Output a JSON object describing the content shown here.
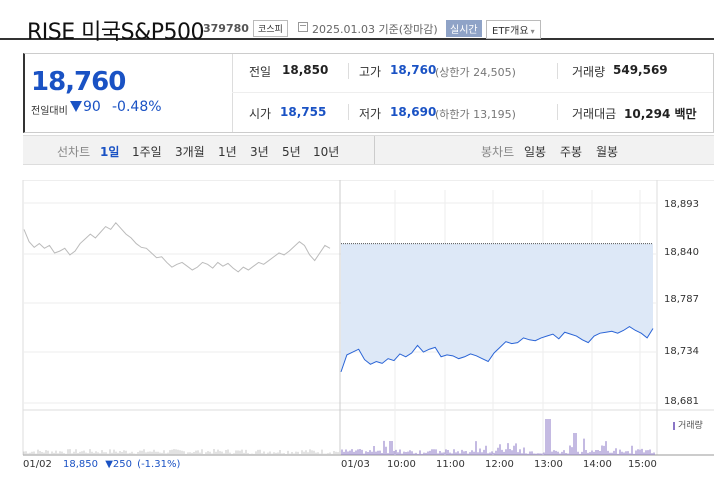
{
  "header": {
    "name": "RISE 미국S&P500",
    "code": "379780",
    "market": "코스피",
    "date": "2025.01.03 기준(장마감)",
    "realtime": "실시간",
    "etf": "ETF개요"
  },
  "price": {
    "current": "18,760",
    "change_label": "전일대비",
    "change": "90",
    "change_pct": "-0.48%"
  },
  "stats": {
    "prev_label": "전일",
    "prev": "18,850",
    "high_label": "고가",
    "high": "18,760",
    "high_sub": "(상한가 24,505)",
    "volume_label": "거래량",
    "volume": "549,569",
    "open_label": "시가",
    "open": "18,755",
    "low_label": "저가",
    "low": "18,690",
    "low_sub": "(하한가 13,195)",
    "amount_label": "거래대금",
    "amount": "10,294 백만"
  },
  "periods": {
    "line_label": "선차트",
    "items": [
      "1일",
      "1주일",
      "3개월",
      "1년",
      "3년",
      "5년",
      "10년"
    ],
    "selected": "1일",
    "candle_label": "봉차트",
    "candle_items": [
      "일봉",
      "주봉",
      "월봉"
    ]
  },
  "chart_data": {
    "type": "line",
    "y_ticks": [
      "18,893",
      "18,840",
      "18,787",
      "18,734",
      "18,681"
    ],
    "ylim": [
      18681,
      18893
    ],
    "prev_close": 18850,
    "x_ticks": [
      "01/03",
      "10:00",
      "11:00",
      "12:00",
      "13:00",
      "14:00",
      "15:00"
    ],
    "volume_label": "거래량",
    "prev_day": {
      "date": "01/02",
      "close": "18,850",
      "change": "▼250",
      "pct": "(-1.31%)"
    },
    "series": [
      {
        "day": "01/02",
        "values": [
          18865,
          18852,
          18846,
          18850,
          18845,
          18848,
          18840,
          18842,
          18845,
          18838,
          18842,
          18850,
          18855,
          18860,
          18856,
          18862,
          18868,
          18865,
          18872,
          18866,
          18860,
          18856,
          18850,
          18846,
          18845,
          18840,
          18835,
          18836,
          18830,
          18825,
          18828,
          18830,
          18826,
          18822,
          18825,
          18830,
          18828,
          18824,
          18830,
          18826,
          18829,
          18824,
          18820,
          18825,
          18822,
          18826,
          18830,
          18828,
          18832,
          18836,
          18840,
          18838,
          18842,
          18847,
          18852,
          18848,
          18838,
          18832,
          18840,
          18848,
          18845
        ]
      },
      {
        "day": "01/03",
        "values": [
          18714,
          18732,
          18735,
          18738,
          18727,
          18722,
          18725,
          18723,
          18728,
          18726,
          18733,
          18730,
          18734,
          18742,
          18735,
          18738,
          18740,
          18730,
          18732,
          18731,
          18728,
          18730,
          18733,
          18731,
          18728,
          18725,
          18734,
          18740,
          18746,
          18744,
          18745,
          18750,
          18748,
          18747,
          18750,
          18752,
          18754,
          18749,
          18756,
          18754,
          18752,
          18748,
          18745,
          18752,
          18755,
          18756,
          18757,
          18755,
          18758,
          18762,
          18758,
          18755,
          18750,
          18760
        ]
      }
    ]
  }
}
